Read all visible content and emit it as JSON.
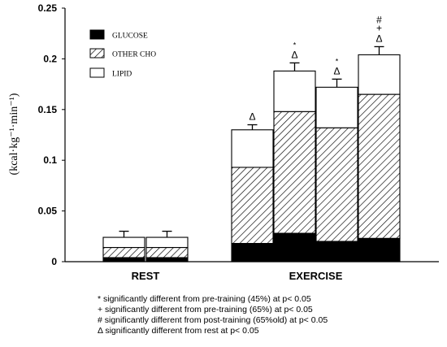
{
  "chart_data": {
    "type": "bar",
    "stacked": true,
    "ylabel": "(kcal·kg⁻¹·min⁻¹)",
    "ylim": [
      0,
      0.25
    ],
    "yticks": [
      "0",
      "0.05",
      "0.1",
      "0.15",
      "0.2",
      "0.25"
    ],
    "ytick_values": [
      0,
      0.05,
      0.1,
      0.15,
      0.2,
      0.25
    ],
    "groups": [
      {
        "label": "REST",
        "bars": 2
      },
      {
        "label": "EXERCISE",
        "bars": 4
      }
    ],
    "legend": {
      "placement": "top-left",
      "items": [
        {
          "label": "GLUCOSE",
          "pattern": "solid-black"
        },
        {
          "label": "OTHER CHO",
          "pattern": "diagonal-hatch"
        },
        {
          "label": "LIPID",
          "pattern": "white"
        }
      ]
    },
    "series": [
      {
        "name": "GLUCOSE",
        "values": [
          0.004,
          0.004,
          0.018,
          0.028,
          0.02,
          0.023
        ]
      },
      {
        "name": "OTHER CHO",
        "values": [
          0.01,
          0.01,
          0.075,
          0.12,
          0.112,
          0.142
        ]
      },
      {
        "name": "LIPID",
        "values": [
          0.01,
          0.01,
          0.037,
          0.04,
          0.04,
          0.039
        ]
      }
    ],
    "error_bars": [
      0.006,
      0.006,
      0.005,
      0.008,
      0.008,
      0.008
    ],
    "annotations": [
      [],
      [],
      [
        "Δ"
      ],
      [
        "*",
        "Δ"
      ],
      [
        "*",
        "Δ"
      ],
      [
        "#",
        "+",
        "Δ"
      ]
    ]
  },
  "footnotes": [
    "* significantly different from pre-training (45%) at p< 0.05",
    "+ significantly different from pre-training (65%) at p< 0.05",
    "# significantly different from post-training (65%old) at p< 0.05",
    "Δ significantly different from rest at p< 0.05"
  ],
  "colors": {
    "ink": "#000000",
    "background": "#ffffff"
  }
}
